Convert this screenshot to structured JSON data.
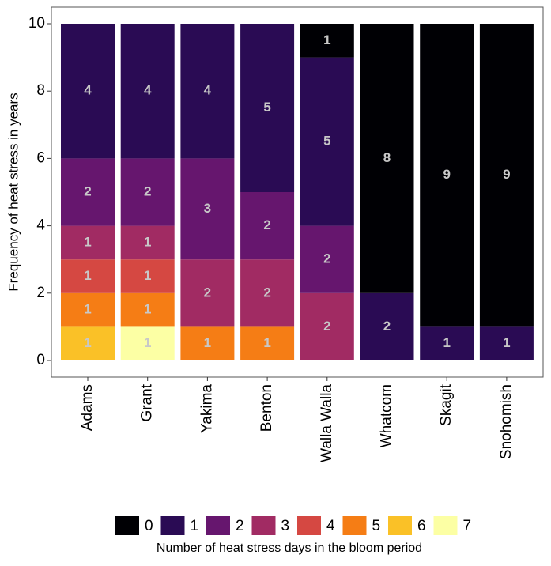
{
  "chart_data": {
    "type": "stacked_bar",
    "ylabel": "Frequency of heat stress in years",
    "legend_title": "Number of heat stress days in the bloom period",
    "categories": [
      "Adams",
      "Grant",
      "Yakima",
      "Benton",
      "Walla Walla",
      "Whatcom",
      "Skagit",
      "Snohomish"
    ],
    "ylim": [
      0,
      10
    ],
    "yticks": [
      0,
      2,
      4,
      6,
      8,
      10
    ],
    "grid": false,
    "legend": "bottom",
    "series": [
      {
        "name": "0",
        "color": "#000004",
        "values": [
          null,
          null,
          null,
          null,
          1,
          8,
          9,
          9
        ]
      },
      {
        "name": "1",
        "color": "#2a0b54",
        "values": [
          4,
          4,
          4,
          5,
          5,
          2,
          1,
          1
        ]
      },
      {
        "name": "2",
        "color": "#66166e",
        "values": [
          2,
          2,
          3,
          2,
          2,
          null,
          null,
          null
        ]
      },
      {
        "name": "3",
        "color": "#a12b63",
        "values": [
          1,
          1,
          2,
          2,
          2,
          null,
          null,
          null
        ]
      },
      {
        "name": "4",
        "color": "#d54842",
        "values": [
          1,
          1,
          null,
          null,
          null,
          null,
          null,
          null
        ]
      },
      {
        "name": "5",
        "color": "#f57d15",
        "values": [
          1,
          1,
          1,
          1,
          null,
          null,
          null,
          null
        ]
      },
      {
        "name": "6",
        "color": "#fac127",
        "values": [
          1,
          null,
          null,
          null,
          null,
          null,
          null,
          null
        ]
      },
      {
        "name": "7",
        "color": "#fcffa4",
        "values": [
          null,
          1,
          null,
          null,
          null,
          null,
          null,
          null
        ]
      }
    ]
  }
}
